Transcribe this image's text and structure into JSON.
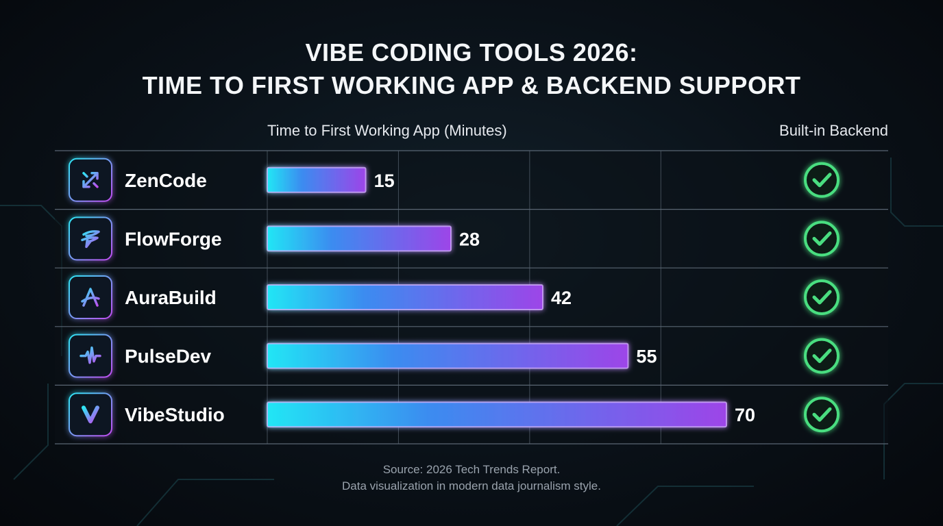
{
  "title_line1": "VIBE CODING TOOLS 2026:",
  "title_line2": "TIME TO FIRST WORKING APP & BACKEND SUPPORT",
  "headers": {
    "time": "Time to First Working App (Minutes)",
    "backend": "Built-in Backend"
  },
  "footer": {
    "source": "Source: 2026 Tech Trends Report.",
    "note": "Data visualization in modern data journalism style."
  },
  "colors": {
    "bar_start": "#22e6f5",
    "bar_mid": "#3b82f6",
    "bar_end": "#b44cf0",
    "check": "#4ade80",
    "grid": "#5a6673"
  },
  "chart_data": {
    "type": "bar",
    "orientation": "horizontal",
    "title": "VIBE CODING TOOLS 2026: TIME TO FIRST WORKING APP & BACKEND SUPPORT",
    "xlabel": "Time to First Working App (Minutes)",
    "xlim": [
      0,
      80
    ],
    "grid": true,
    "categories": [
      "ZenCode",
      "FlowForge",
      "AuraBuild",
      "PulseDev",
      "VibeStudio"
    ],
    "values": [
      15,
      28,
      42,
      55,
      70
    ],
    "icons": [
      "arrows-diagonal-icon",
      "f-logo-icon",
      "a-logo-icon",
      "pulse-wave-icon",
      "v-logo-icon"
    ],
    "built_in_backend": [
      true,
      true,
      true,
      true,
      true
    ]
  }
}
